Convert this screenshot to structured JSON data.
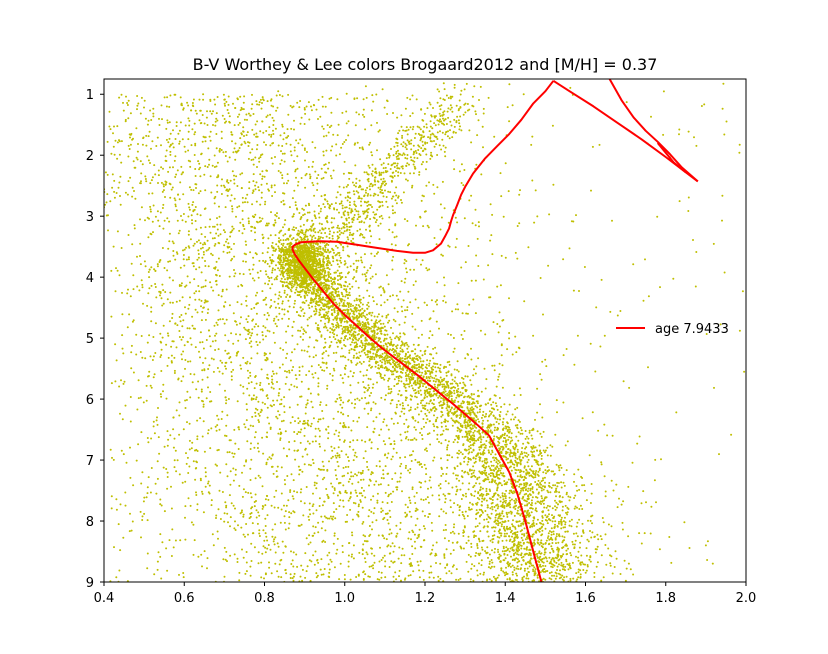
{
  "chart_data": {
    "type": "scatter",
    "title": "B-V Worthey & Lee colors Brogaard2012 and [M/H] = 0.37",
    "xlabel": "",
    "ylabel": "",
    "xlim": [
      0.4,
      2.0
    ],
    "ylim": [
      9.0,
      0.75
    ],
    "y_inverted": true,
    "grid": false,
    "legend_placement": "center-right",
    "x_ticks": [
      "0.4",
      "0.6",
      "0.8",
      "1.0",
      "1.2",
      "1.4",
      "1.6",
      "1.8",
      "2.0"
    ],
    "y_ticks": [
      "1",
      "2",
      "3",
      "4",
      "5",
      "6",
      "7",
      "8",
      "9"
    ],
    "colors": {
      "scatter": "#bfbf00",
      "isochrone": "#ff0000"
    },
    "series": [
      {
        "name": "age 7.9433",
        "kind": "line",
        "x": [
          1.49,
          1.47,
          1.45,
          1.43,
          1.41,
          1.385,
          1.36,
          1.33,
          1.3,
          1.27,
          1.24,
          1.21,
          1.18,
          1.15,
          1.12,
          1.09,
          1.06,
          1.03,
          1.0,
          0.97,
          0.945,
          0.92,
          0.9,
          0.885,
          0.875,
          0.87,
          0.87,
          0.878,
          0.89,
          0.91,
          0.94,
          0.98,
          1.03,
          1.08,
          1.13,
          1.17,
          1.2,
          1.22,
          1.24,
          1.25,
          1.26,
          1.265,
          1.27,
          1.28,
          1.29,
          1.3,
          1.32,
          1.35,
          1.38,
          1.41,
          1.44,
          1.47,
          1.5,
          1.52
        ],
        "y": [
          9.0,
          8.5,
          8.0,
          7.55,
          7.2,
          6.9,
          6.6,
          6.42,
          6.25,
          6.08,
          5.92,
          5.76,
          5.6,
          5.45,
          5.3,
          5.15,
          4.98,
          4.8,
          4.62,
          4.42,
          4.22,
          4.02,
          3.85,
          3.72,
          3.62,
          3.55,
          3.5,
          3.46,
          3.43,
          3.42,
          3.41,
          3.42,
          3.47,
          3.52,
          3.57,
          3.6,
          3.6,
          3.56,
          3.45,
          3.33,
          3.2,
          3.08,
          2.98,
          2.82,
          2.65,
          2.52,
          2.3,
          2.05,
          1.85,
          1.65,
          1.42,
          1.15,
          0.95,
          0.78
        ]
      },
      {
        "name": "",
        "kind": "line",
        "x": [
          1.52,
          1.56,
          1.62,
          1.68,
          1.74,
          1.8,
          1.85,
          1.88
        ],
        "y": [
          0.78,
          0.95,
          1.2,
          1.47,
          1.74,
          2.03,
          2.28,
          2.43
        ]
      },
      {
        "name": "",
        "kind": "line",
        "x": [
          1.66,
          1.69,
          1.72,
          1.75,
          1.78,
          1.81,
          1.84,
          1.88
        ],
        "y": [
          0.75,
          1.1,
          1.38,
          1.6,
          1.78,
          1.98,
          2.2,
          2.43
        ]
      },
      {
        "name": "",
        "kind": "line",
        "x": [
          1.78,
          1.8,
          1.82,
          1.85
        ],
        "y": [
          1.8,
          1.96,
          2.12,
          2.28
        ]
      }
    ]
  }
}
